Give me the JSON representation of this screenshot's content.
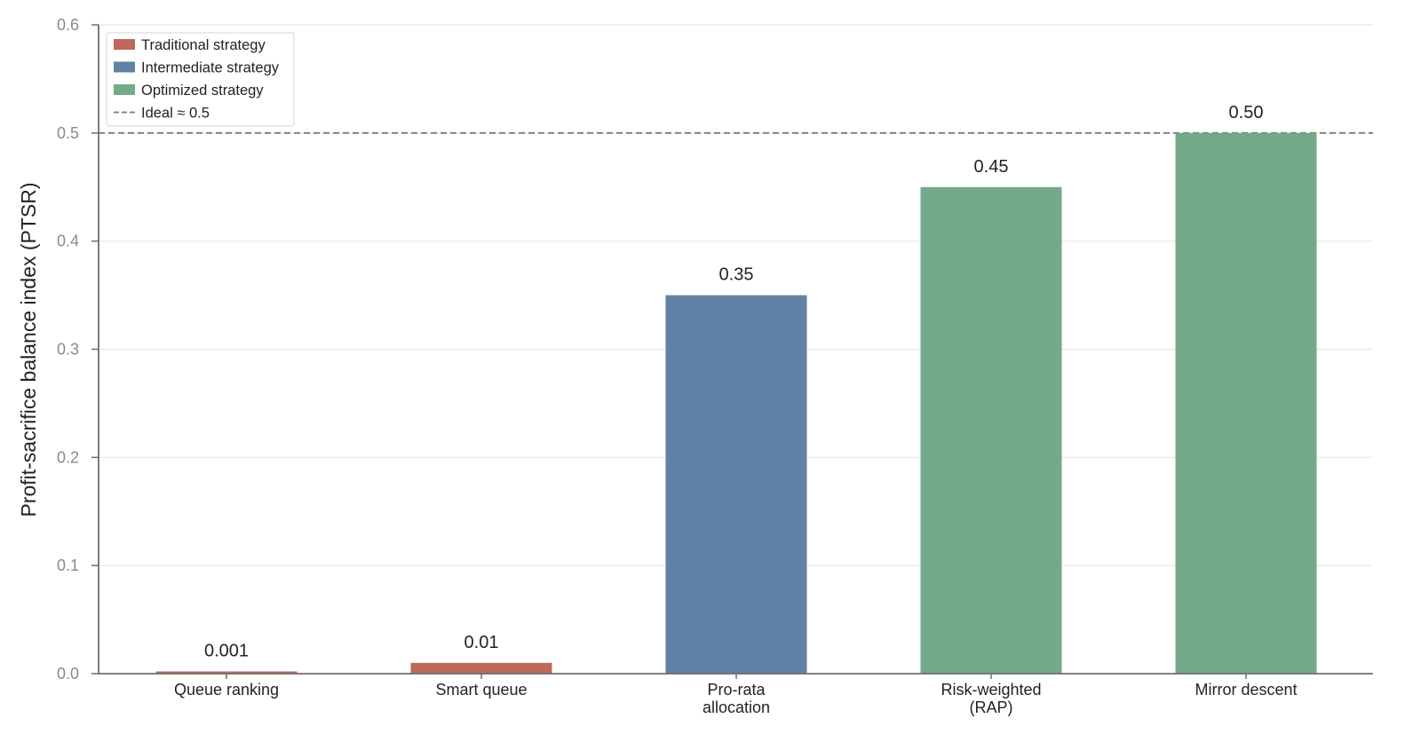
{
  "chart_data": {
    "type": "bar",
    "categories": [
      [
        "Queue ranking"
      ],
      [
        "Smart queue"
      ],
      [
        "Pro-rata",
        "allocation"
      ],
      [
        "Risk-weighted",
        "(RAP)"
      ],
      [
        "Mirror descent"
      ]
    ],
    "values": [
      0.001,
      0.01,
      0.35,
      0.45,
      0.5
    ],
    "value_labels": [
      "0.001",
      "0.01",
      "0.35",
      "0.45",
      "0.50"
    ],
    "bar_groups": [
      "traditional",
      "traditional",
      "intermediate",
      "optimized",
      "optimized"
    ],
    "ylabel": "Profit-sacrifice balance index (PTSR)",
    "ylim": [
      0,
      0.6
    ],
    "yticks": [
      0.0,
      0.1,
      0.2,
      0.3,
      0.4,
      0.5,
      0.6
    ],
    "ytick_labels": [
      "0.0",
      "0.1",
      "0.2",
      "0.3",
      "0.4",
      "0.5",
      "0.6"
    ],
    "grid": "horizontal",
    "reference_line": {
      "y": 0.5,
      "style": "dashed",
      "color": "#7a7a7a",
      "label": "Ideal ≈ 0.5"
    },
    "legend": {
      "placement": "top-left",
      "entries": [
        {
          "key": "traditional",
          "label": "Traditional strategy",
          "color": "#c0685a"
        },
        {
          "key": "intermediate",
          "label": "Intermediate strategy",
          "color": "#6082a6"
        },
        {
          "key": "optimized",
          "label": "Optimized strategy",
          "color": "#74a98a"
        },
        {
          "key": "ideal",
          "label": "Ideal ≈ 0.5",
          "line": "dashed"
        }
      ]
    },
    "colors": {
      "traditional": "#c0685a",
      "intermediate": "#6082a6",
      "optimized": "#74a98a",
      "grid": "#e8e8e8",
      "axis": "#6e6e6e"
    }
  }
}
